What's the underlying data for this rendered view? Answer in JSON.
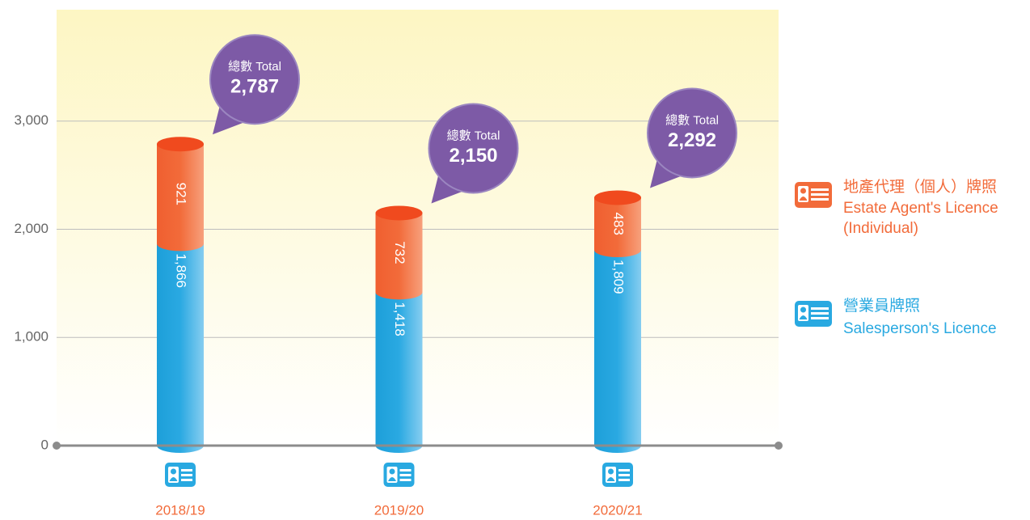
{
  "chart_data": {
    "type": "stacked_bar",
    "categories": [
      "2018/19",
      "2019/20",
      "2020/21"
    ],
    "series": [
      {
        "name": "營業員牌照",
        "name_en": "Salesperson's Licence",
        "color": "#29a9e1",
        "values": [
          1866,
          1418,
          1809
        ],
        "value_labels": [
          "1,866",
          "1,418",
          "1,809"
        ]
      },
      {
        "name": "地產代理（個人）牌照",
        "name_en": "Estate Agent's Licence (Individual)",
        "color": "#f26b3a",
        "values": [
          921,
          732,
          483
        ]
      }
    ],
    "totals": {
      "label": "總數 Total",
      "color": "#7d5aa6",
      "values": [
        2787,
        2150,
        2292
      ],
      "value_labels": [
        "2,787",
        "2,150",
        "2,292"
      ]
    },
    "ylim": [
      0,
      4000
    ],
    "yticks": [
      0,
      {
        "value": 1000,
        "label": "1,000"
      },
      {
        "value": 2000,
        "label": "2,000"
      },
      {
        "value": 3000,
        "label": "3,000"
      }
    ],
    "grid": true
  }
}
